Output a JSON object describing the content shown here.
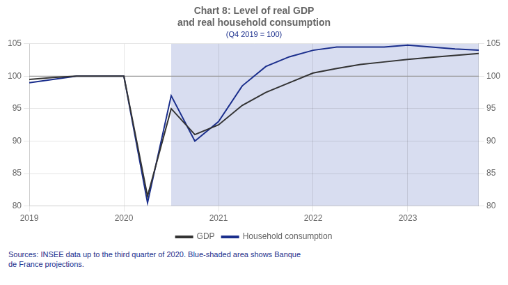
{
  "chart_data": {
    "type": "line",
    "title": [
      "Chart 8: Level of real GDP",
      "and real household consumption"
    ],
    "subtitle": "(Q4 2019 = 100)",
    "annotations": [
      "Sources: INSEE data up to the third quarter of 2020. Blue-shaded area shows Banque\nde France projections."
    ],
    "x": [
      2019.0,
      2019.25,
      2019.5,
      2019.75,
      2020.0,
      2020.25,
      2020.5,
      2020.75,
      2021.0,
      2021.25,
      2021.5,
      2021.75,
      2022.0,
      2022.25,
      2022.5,
      2022.75,
      2023.0,
      2023.25,
      2023.5,
      2023.75
    ],
    "series": [
      {
        "name": "GDP",
        "color": "#333333",
        "values": [
          99.5,
          99.8,
          100.0,
          100.0,
          100.0,
          81.5,
          95.0,
          91.0,
          92.5,
          95.5,
          97.5,
          99.0,
          100.5,
          101.2,
          101.8,
          102.2,
          102.6,
          102.9,
          103.2,
          103.5
        ]
      },
      {
        "name": "Household consumption",
        "color": "#1a2e8c",
        "values": [
          99.0,
          99.5,
          100.0,
          100.0,
          100.0,
          80.5,
          97.0,
          90.0,
          93.0,
          98.5,
          101.5,
          103.0,
          104.0,
          104.5,
          104.5,
          104.5,
          104.8,
          104.5,
          104.2,
          104.0
        ]
      }
    ],
    "shade": {
      "xmin": 2020.5,
      "xmax": 2023.75,
      "color": "#d8ddf0"
    },
    "hline": {
      "y": 100,
      "color": "#999999"
    },
    "xlim": [
      2019.0,
      2023.75
    ],
    "xticks": [
      2019,
      2020,
      2021,
      2022,
      2023
    ],
    "ylim": [
      80,
      105
    ],
    "yticks": [
      80,
      85,
      90,
      95,
      100,
      105
    ],
    "y2lim": [
      80,
      105
    ],
    "y2ticks": [
      80,
      85,
      90,
      95,
      100,
      105
    ],
    "grid": true,
    "legend": "bottom"
  }
}
